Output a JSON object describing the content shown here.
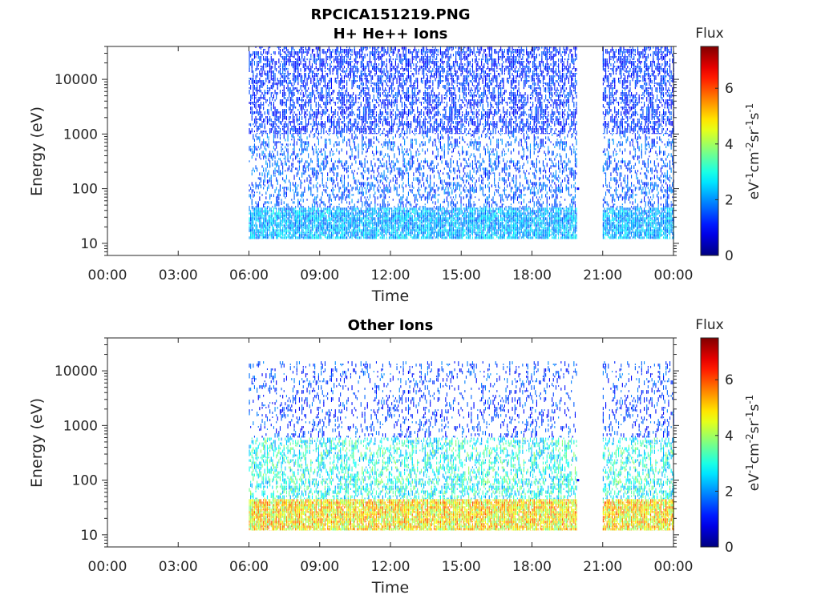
{
  "figure": {
    "title": "RPCICA151219.PNG"
  },
  "chart_data": [
    {
      "type": "heatmap",
      "title": "H+ He++ Ions",
      "xlabel": "Time",
      "ylabel": "Energy (eV)",
      "x_ticks": [
        "00:00",
        "03:00",
        "06:00",
        "09:00",
        "12:00",
        "15:00",
        "18:00",
        "21:00",
        "00:00"
      ],
      "x_range_hours": [
        0,
        24
      ],
      "y_scale": "log",
      "y_ticks": [
        10,
        100,
        1000,
        10000
      ],
      "y_tick_labels": [
        "10",
        "100",
        "1000",
        "10000"
      ],
      "ylim": [
        6,
        40000
      ],
      "colorbar": {
        "label": "Flux",
        "units_label": "eV-1cm-2sr-1s-1",
        "ticks": [
          0,
          2,
          4,
          6
        ],
        "tick_labels": [
          "0",
          "2",
          "4",
          "6"
        ],
        "range": [
          0,
          7.5
        ],
        "colormap": "jet"
      },
      "data_segments_hours": [
        [
          6.0,
          19.9
        ],
        [
          21.0,
          24.0
        ]
      ],
      "isolated_points": [
        {
          "time_hours": 19.95,
          "energy_ev": 100,
          "flux": 1.0
        }
      ],
      "bands": [
        {
          "energy_ev": [
            12,
            45
          ],
          "flux_range": [
            1.5,
            3.0
          ],
          "density": 0.85
        },
        {
          "energy_ev": [
            45,
            1000
          ],
          "flux_range": [
            1.0,
            2.2
          ],
          "density": 0.25
        },
        {
          "energy_ev": [
            1000,
            40000
          ],
          "flux_range": [
            0.8,
            1.8
          ],
          "density": 0.45
        }
      ]
    },
    {
      "type": "heatmap",
      "title": "Other Ions",
      "xlabel": "Time",
      "ylabel": "Energy (eV)",
      "x_ticks": [
        "00:00",
        "03:00",
        "06:00",
        "09:00",
        "12:00",
        "15:00",
        "18:00",
        "21:00",
        "00:00"
      ],
      "x_range_hours": [
        0,
        24
      ],
      "y_scale": "log",
      "y_ticks": [
        10,
        100,
        1000,
        10000
      ],
      "y_tick_labels": [
        "10",
        "100",
        "1000",
        "10000"
      ],
      "ylim": [
        6,
        40000
      ],
      "colorbar": {
        "label": "Flux",
        "units_label": "eV-1cm-2sr-1s-1",
        "ticks": [
          0,
          2,
          4,
          6
        ],
        "tick_labels": [
          "0",
          "2",
          "4",
          "6"
        ],
        "range": [
          0,
          7.5
        ],
        "colormap": "jet"
      },
      "data_segments_hours": [
        [
          6.0,
          19.9
        ],
        [
          21.0,
          24.0
        ]
      ],
      "isolated_points": [
        {
          "time_hours": 19.95,
          "energy_ev": 100,
          "flux": 1.0
        }
      ],
      "bands": [
        {
          "energy_ev": [
            12,
            45
          ],
          "flux_range": [
            3.5,
            6.0
          ],
          "density": 0.9
        },
        {
          "energy_ev": [
            45,
            600
          ],
          "flux_range": [
            2.0,
            4.0
          ],
          "density": 0.35
        },
        {
          "energy_ev": [
            600,
            15000
          ],
          "flux_range": [
            0.8,
            2.0
          ],
          "density": 0.15
        }
      ]
    }
  ]
}
